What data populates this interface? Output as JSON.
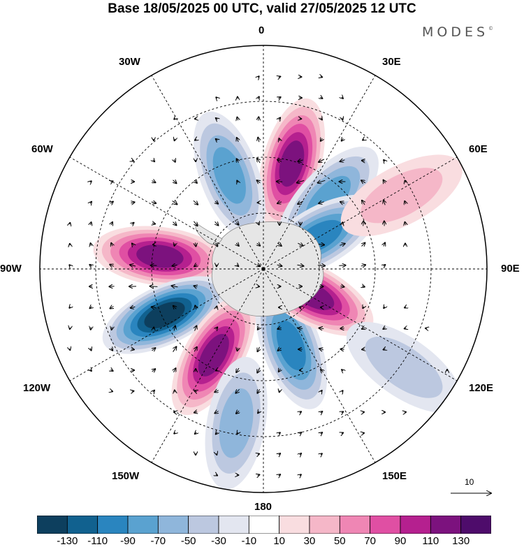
{
  "title": "Base 18/05/2025 00 UTC, valid 27/05/2025 12 UTC",
  "brand": "MODES",
  "brand_mark": "©",
  "projection": "south-polar-stereographic",
  "longitude_labels": [
    "0",
    "30E",
    "60E",
    "90E",
    "120E",
    "150E",
    "180",
    "150W",
    "120W",
    "90W",
    "60W",
    "30W"
  ],
  "vector_reference": {
    "label": "10",
    "icon": "arrow-right-icon"
  },
  "colorbar": {
    "ticks": [
      "-130",
      "-110",
      "-90",
      "-70",
      "-50",
      "-30",
      "-10",
      "10",
      "30",
      "50",
      "70",
      "90",
      "110",
      "130"
    ],
    "colors": [
      "#0d3f5e",
      "#11618f",
      "#2a85bf",
      "#5aa2d0",
      "#8fb6db",
      "#bcc8e0",
      "#e3e6f0",
      "#ffffff",
      "#f9dde0",
      "#f5b7c8",
      "#ef86b4",
      "#e04fa3",
      "#b5208f",
      "#7c127e",
      "#4e0c6b"
    ]
  },
  "anomaly_centers": [
    {
      "lon": 15,
      "lat": -38,
      "value": 110
    },
    {
      "lon": 43,
      "lat": -44,
      "value": -70
    },
    {
      "lon": 60,
      "lat": -58,
      "value": -90
    },
    {
      "lon": 62,
      "lat": -20,
      "value": 30
    },
    {
      "lon": -20,
      "lat": -42,
      "value": -70
    },
    {
      "lon": -83,
      "lat": -40,
      "value": 110
    },
    {
      "lon": -115,
      "lat": -38,
      "value": -130
    },
    {
      "lon": -150,
      "lat": -42,
      "value": 110
    },
    {
      "lon": 160,
      "lat": -50,
      "value": -90
    },
    {
      "lon": 118,
      "lat": -62,
      "value": 110
    },
    {
      "lon": 125,
      "lat": -15,
      "value": -30
    },
    {
      "lon": -170,
      "lat": -20,
      "value": -50
    }
  ]
}
